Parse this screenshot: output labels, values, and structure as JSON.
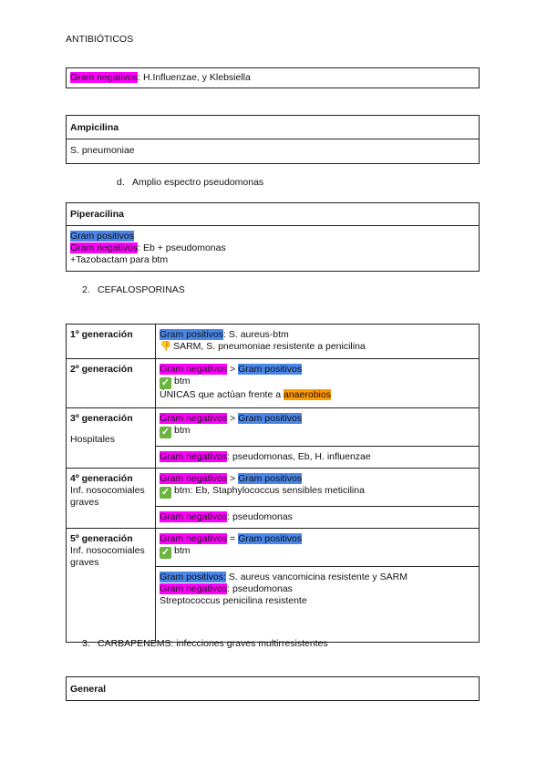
{
  "title": "ANTIBIÓTICOS",
  "colors": {
    "gram_negativos": "#ff00ff",
    "gram_positivos": "#4a86e8",
    "anaerobios": "#ff9900"
  },
  "table_gram": {
    "lines": [
      [
        {
          "t": "Gram negativos",
          "hl": "neg"
        },
        {
          "t": ": H.Influenzae, y Klebsiella"
        }
      ]
    ]
  },
  "ampicilina": {
    "header": "Ampicilina",
    "lines": [
      [
        {
          "t": "S. pneumoniae"
        }
      ]
    ]
  },
  "list_d": {
    "marker": "d.",
    "text": "Amplio espectro pseudomonas"
  },
  "piperacilina": {
    "header": "Piperacilina",
    "lines": [
      [
        {
          "t": "Gram positivos",
          "hl": "pos"
        }
      ],
      [
        {
          "t": "Gram negativos",
          "hl": "neg"
        },
        {
          "t": ": Eb + pseudomonas"
        }
      ],
      [
        {
          "t": "+Tazobactam para btm"
        }
      ]
    ]
  },
  "section2": {
    "marker": "2.",
    "text": "CEFALOSPORINAS"
  },
  "cefalosporinas": [
    {
      "label": "1º generación",
      "sub": "",
      "cells": [
        [
          [
            {
              "t": "Gram positivos",
              "hl": "pos"
            },
            {
              "t": ": S. aureus-btm"
            }
          ],
          [
            {
              "icon": "hand-pointing-down-icon"
            },
            {
              "t": "SARM, S. pneumoniae resistente a penicilina"
            }
          ]
        ]
      ]
    },
    {
      "label": "2º generación",
      "sub": "",
      "cells": [
        [
          [
            {
              "t": "Gram negativos",
              "hl": "neg"
            },
            {
              "t": " > "
            },
            {
              "t": "Gram positivos",
              "hl": "pos"
            }
          ],
          [
            {
              "icon": "check-mark-icon"
            },
            {
              "t": "btm"
            }
          ],
          [
            {
              "t": "ÚNICAS que actúan frente a "
            },
            {
              "t": "anaerobios",
              "hl": "orange"
            }
          ]
        ]
      ]
    },
    {
      "label": "3º generación",
      "sub": "Hospitales",
      "cells": [
        [
          [
            {
              "t": "Gram negativos",
              "hl": "neg"
            },
            {
              "t": " > "
            },
            {
              "t": "Gram positivos",
              "hl": "pos"
            }
          ],
          [
            {
              "icon": "check-mark-icon"
            },
            {
              "t": "btm"
            }
          ]
        ],
        [
          [
            {
              "t": "Gram negativos",
              "hl": "neg"
            },
            {
              "t": ": pseudomonas, Eb, H. influenzae"
            }
          ]
        ]
      ]
    },
    {
      "label": "4º generación",
      "sub": "Inf. nosocomiales graves",
      "cells": [
        [
          [
            {
              "t": "Gram negativos",
              "hl": "neg"
            },
            {
              "t": " > "
            },
            {
              "t": "Gram positivos",
              "hl": "pos"
            }
          ],
          [
            {
              "icon": "check-mark-icon"
            },
            {
              "t": "btm: Eb, Staphylococcus sensibles meticilina"
            }
          ]
        ],
        [
          [
            {
              "t": "Gram negativos",
              "hl": "neg"
            },
            {
              "t": ": pseudomonas"
            }
          ]
        ]
      ]
    },
    {
      "label": "5º generación",
      "sub": "Inf. nosocomiales graves",
      "cells": [
        [
          [
            {
              "t": "Gram negativos",
              "hl": "neg"
            },
            {
              "t": " = "
            },
            {
              "t": "Gram positivos",
              "hl": "pos"
            }
          ],
          [
            {
              "icon": "check-mark-icon"
            },
            {
              "t": "btm"
            }
          ]
        ],
        [
          [
            {
              "t": "Gram positivos:",
              "hl": "pos"
            },
            {
              "t": "  S. aureus vancomicina resistente y SARM"
            }
          ],
          [
            {
              "t": "Gram negativos",
              "hl": "neg"
            },
            {
              "t": ": pseudomonas"
            }
          ],
          [
            {
              "t": "Streptococcus penicilina resistente"
            }
          ]
        ]
      ]
    }
  ],
  "section3": {
    "marker": "3.",
    "text": "CARBAPENEMS: infecciones graves multirresistentes"
  },
  "general": {
    "header": "General"
  }
}
